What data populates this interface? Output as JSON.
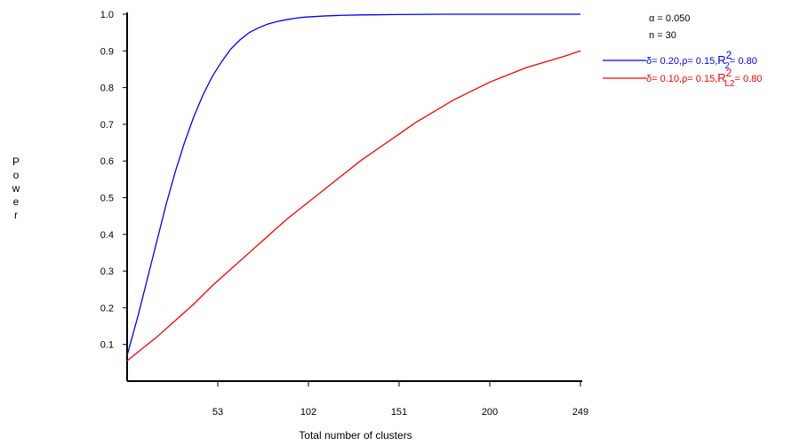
{
  "chart_data": {
    "type": "line",
    "title": "",
    "xlabel": "Total number of clusters",
    "ylabel": "Power",
    "xlim": [
      4,
      249
    ],
    "ylim": [
      0,
      1.0
    ],
    "xticks": [
      53,
      102,
      151,
      200,
      249
    ],
    "xtick_labels": [
      "53",
      "102",
      "151",
      "200",
      "249"
    ],
    "yticks": [
      0.1,
      0.2,
      0.3,
      0.4,
      0.5,
      0.6,
      0.7,
      0.8,
      0.9,
      1.0
    ],
    "ytick_labels": [
      "0.1",
      "0.2",
      "0.3",
      "0.4",
      "0.5",
      "0.6",
      "0.7",
      "0.8",
      "0.9",
      "1.0"
    ],
    "grid": false,
    "annotations": [
      "α = 0.050",
      "n = 30"
    ],
    "legend_position": "top-right",
    "series": [
      {
        "legend": {
          "prefix": "δ= 0.20,ρ= 0.15,",
          "R": "R",
          "sup": "2",
          "sub": "2",
          "suffix": "= 0.80"
        },
        "color": "#0000ff",
        "x": [
          4,
          10,
          15,
          20,
          25,
          30,
          35,
          40,
          45,
          50,
          55,
          60,
          65,
          70,
          75,
          80,
          85,
          90,
          95,
          100,
          110,
          120,
          130,
          150,
          175,
          200,
          225,
          249
        ],
        "y": [
          0.07,
          0.18,
          0.28,
          0.38,
          0.48,
          0.57,
          0.65,
          0.72,
          0.78,
          0.83,
          0.87,
          0.905,
          0.93,
          0.95,
          0.963,
          0.973,
          0.98,
          0.985,
          0.989,
          0.992,
          0.995,
          0.997,
          0.998,
          0.999,
          1.0,
          1.0,
          1.0,
          1.0
        ]
      },
      {
        "legend": {
          "prefix": "δ= 0.10,ρ= 0.15,",
          "R": "R",
          "sup": "2",
          "sub": "L2",
          "suffix": "= 0.80"
        },
        "color": "#ff0000",
        "x": [
          4,
          10,
          20,
          30,
          40,
          50,
          60,
          70,
          80,
          90,
          100,
          110,
          120,
          130,
          140,
          150,
          160,
          170,
          180,
          190,
          200,
          210,
          220,
          230,
          240,
          249
        ],
        "y": [
          0.055,
          0.08,
          0.12,
          0.165,
          0.21,
          0.26,
          0.305,
          0.35,
          0.395,
          0.44,
          0.48,
          0.52,
          0.56,
          0.6,
          0.635,
          0.67,
          0.705,
          0.735,
          0.765,
          0.79,
          0.815,
          0.835,
          0.855,
          0.87,
          0.885,
          0.9
        ]
      }
    ]
  }
}
